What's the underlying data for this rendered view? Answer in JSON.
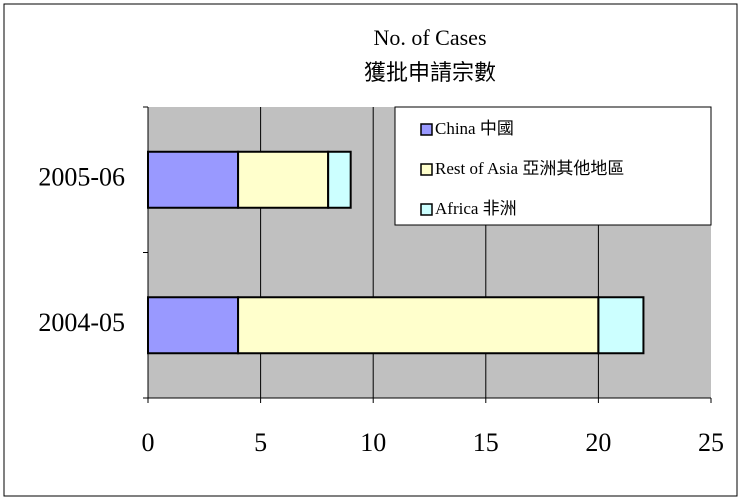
{
  "chart_data": {
    "type": "stacked-bar-horizontal",
    "title": "No. of Cases",
    "subtitle": "獲批申請宗數",
    "categories": [
      "2004-05",
      "2005-06"
    ],
    "series": [
      {
        "name": "China 中國",
        "color": "#9999ff",
        "values": [
          4,
          4
        ]
      },
      {
        "name": "Rest of Asia 亞洲其他地區",
        "color": "#ffffcc",
        "values": [
          16,
          4
        ]
      },
      {
        "name": "Africa 非洲",
        "color": "#ccffff",
        "values": [
          2,
          1
        ]
      }
    ],
    "xlim": [
      0,
      25
    ],
    "xticks": [
      0,
      5,
      10,
      15,
      20,
      25
    ],
    "grid": true,
    "legend": "top-right"
  }
}
